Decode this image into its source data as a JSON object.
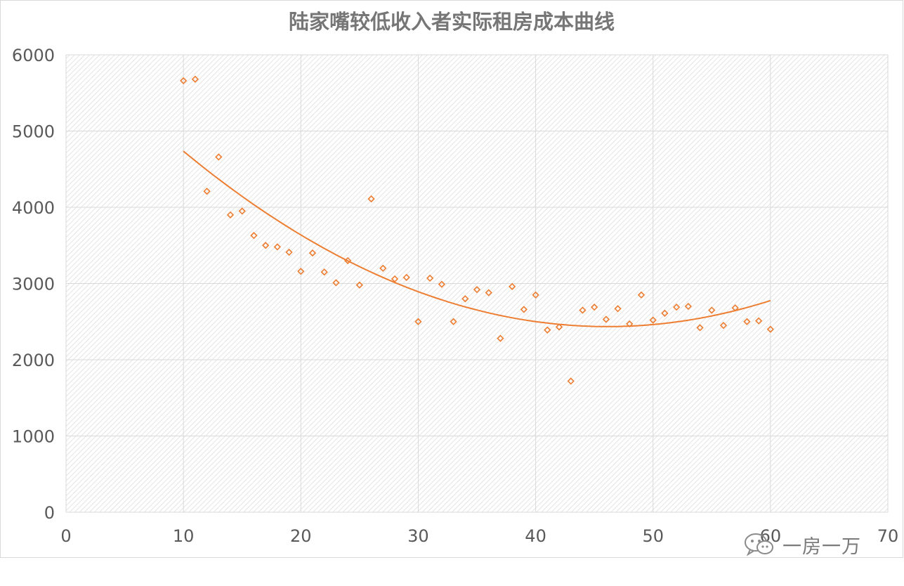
{
  "colors": {
    "series": "#ED7D31",
    "grid": "#d9d9d9",
    "plot_hatch": "#e4e4e4",
    "text": "#595959",
    "title": "#767676"
  },
  "watermark": {
    "icon": "wechat-icon",
    "text": "一房一万"
  },
  "chart_data": {
    "type": "scatter",
    "title": "陆家嘴较低收入者实际租房成本曲线",
    "xlabel": "",
    "ylabel": "",
    "xlim": [
      0,
      70
    ],
    "ylim": [
      0,
      6000
    ],
    "x_ticks": [
      0,
      10,
      20,
      30,
      40,
      50,
      60,
      70
    ],
    "y_ticks": [
      0,
      1000,
      2000,
      3000,
      4000,
      5000,
      6000
    ],
    "grid": true,
    "legend": "none",
    "series": [
      {
        "marker": "diamond-open",
        "points": [
          [
            10,
            5660
          ],
          [
            11,
            5680
          ],
          [
            12,
            4210
          ],
          [
            13,
            4660
          ],
          [
            14,
            3900
          ],
          [
            15,
            3950
          ],
          [
            16,
            3630
          ],
          [
            17,
            3500
          ],
          [
            18,
            3480
          ],
          [
            19,
            3410
          ],
          [
            20,
            3160
          ],
          [
            21,
            3400
          ],
          [
            22,
            3150
          ],
          [
            23,
            3010
          ],
          [
            24,
            3300
          ],
          [
            25,
            2980
          ],
          [
            26,
            4110
          ],
          [
            27,
            3200
          ],
          [
            28,
            3060
          ],
          [
            29,
            3080
          ],
          [
            30,
            2500
          ],
          [
            31,
            3070
          ],
          [
            32,
            2990
          ],
          [
            33,
            2500
          ],
          [
            34,
            2800
          ],
          [
            35,
            2920
          ],
          [
            36,
            2880
          ],
          [
            37,
            2280
          ],
          [
            38,
            2960
          ],
          [
            39,
            2660
          ],
          [
            40,
            2850
          ],
          [
            41,
            2390
          ],
          [
            42,
            2430
          ],
          [
            43,
            1720
          ],
          [
            44,
            2650
          ],
          [
            45,
            2690
          ],
          [
            46,
            2530
          ],
          [
            47,
            2670
          ],
          [
            48,
            2470
          ],
          [
            49,
            2850
          ],
          [
            50,
            2520
          ],
          [
            51,
            2610
          ],
          [
            52,
            2690
          ],
          [
            53,
            2700
          ],
          [
            54,
            2420
          ],
          [
            55,
            2650
          ],
          [
            56,
            2450
          ],
          [
            57,
            2680
          ],
          [
            58,
            2500
          ],
          [
            59,
            2510
          ],
          [
            60,
            2400
          ]
        ]
      }
    ],
    "trendline": {
      "type": "polynomial",
      "order": 2,
      "x_range": [
        10,
        60
      ],
      "points": [
        [
          10,
          4740
        ],
        [
          28,
          3000
        ],
        [
          46,
          2450
        ],
        [
          60,
          2770
        ]
      ]
    }
  }
}
